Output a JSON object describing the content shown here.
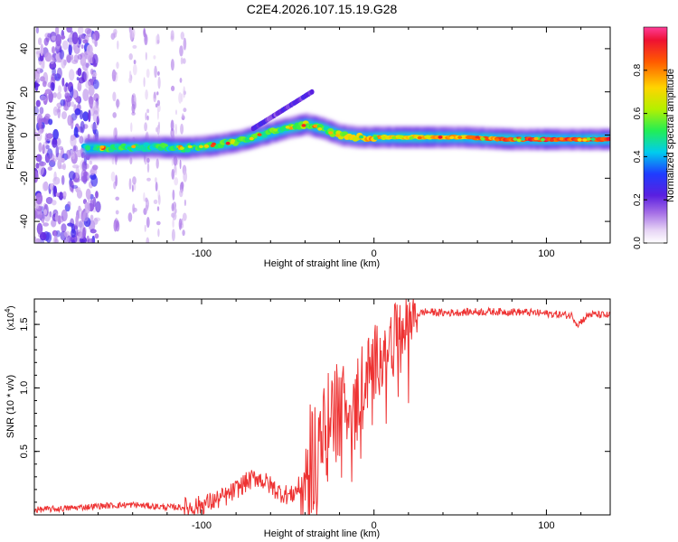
{
  "title": "C2E4.2026.107.15.19.G28",
  "chart_data": [
    {
      "type": "heatmap",
      "xlabel": "Height of straight line (km)",
      "ylabel": "Frequency (Hz)",
      "xlim": [
        -197,
        137
      ],
      "ylim": [
        -50,
        50
      ],
      "xticks": [
        -100,
        0,
        100
      ],
      "xtick_labels": [
        "-100",
        "0",
        "100"
      ],
      "yticks": [
        -40,
        -20,
        0,
        20,
        40
      ],
      "ytick_labels": [
        "-40",
        "-20",
        "0",
        "20",
        "40"
      ],
      "colorbar": {
        "label": "Normalized spectral amplitude",
        "range": [
          0,
          1
        ],
        "ticks": [
          0.0,
          0.2,
          0.4,
          0.6,
          0.8
        ],
        "tick_labels": [
          "0.0",
          "0.2",
          "0.4",
          "0.6",
          "0.8"
        ]
      },
      "ridge": {
        "x": [
          -168,
          -150,
          -130,
          -110,
          -95,
          -80,
          -65,
          -52,
          -40,
          -30,
          -20,
          -10,
          0,
          20,
          50,
          80,
          100,
          115,
          137
        ],
        "y": [
          -6,
          -6,
          -5.5,
          -6,
          -5,
          -3,
          0,
          3,
          5,
          3,
          0,
          -1,
          -1,
          -1,
          -1,
          -2,
          -2,
          -2,
          -2
        ],
        "amplitude": [
          0.45,
          0.5,
          0.5,
          0.45,
          0.5,
          0.55,
          0.5,
          0.55,
          0.6,
          0.5,
          0.6,
          0.7,
          0.75,
          0.7,
          0.75,
          0.85,
          0.9,
          0.85,
          0.9
        ]
      },
      "branch": {
        "x": [
          -70,
          -60,
          -50,
          -40,
          -36
        ],
        "y": [
          3,
          8,
          13,
          18,
          20
        ]
      },
      "noise_region_x": [
        -197,
        -160
      ]
    },
    {
      "type": "line",
      "xlabel": "Height of straight line (km)",
      "ylabel": "SNR (10 * v/v)",
      "scale_label": "(x10",
      "scale_exp": "4",
      "scale_close": ")",
      "xlim": [
        -197,
        137
      ],
      "ylim": [
        0,
        1.7
      ],
      "xticks": [
        -100,
        0,
        100
      ],
      "xtick_labels": [
        "-100",
        "0",
        "100"
      ],
      "yticks": [
        0.5,
        1.0,
        1.5
      ],
      "ytick_labels": [
        "0.5",
        "1.0",
        "1.5"
      ],
      "series": [
        {
          "name": "SNR",
          "color": "#ee3333",
          "x": [
            -197,
            -180,
            -160,
            -140,
            -120,
            -105,
            -95,
            -85,
            -75,
            -68,
            -62,
            -55,
            -48,
            -42,
            -36,
            -30,
            -24,
            -18,
            -12,
            -6,
            0,
            5,
            10,
            15,
            20,
            25,
            30,
            40,
            60,
            80,
            95,
            105,
            115,
            118,
            125,
            137
          ],
          "y": [
            0.04,
            0.05,
            0.07,
            0.08,
            0.06,
            0.06,
            0.1,
            0.15,
            0.25,
            0.3,
            0.25,
            0.18,
            0.15,
            0.25,
            0.45,
            0.6,
            0.8,
            0.85,
            0.9,
            1.05,
            1.2,
            1.3,
            1.4,
            1.45,
            1.52,
            1.58,
            1.6,
            1.59,
            1.6,
            1.6,
            1.59,
            1.58,
            1.57,
            1.5,
            1.58,
            1.57
          ]
        }
      ]
    }
  ]
}
